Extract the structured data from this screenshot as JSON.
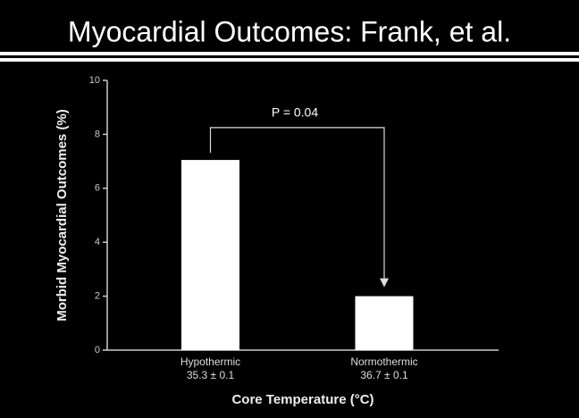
{
  "chart_data": {
    "type": "bar",
    "title": "Myocardial Outcomes: Frank, et al.",
    "categories": [
      "Hypothermic",
      "Normothermic"
    ],
    "category_sublabels": [
      "35.3 ± 0.1",
      "36.7 ± 0.1"
    ],
    "values": [
      7.05,
      2.0
    ],
    "color": "#ffffff",
    "ylim": [
      0,
      10
    ],
    "yticks": [
      0,
      2,
      4,
      6,
      8,
      10
    ],
    "ylabel": "Morbid Myocardial Outcomes (%)",
    "xlabel": "Core Temperature (°C)",
    "annotation": "P = 0.04"
  }
}
